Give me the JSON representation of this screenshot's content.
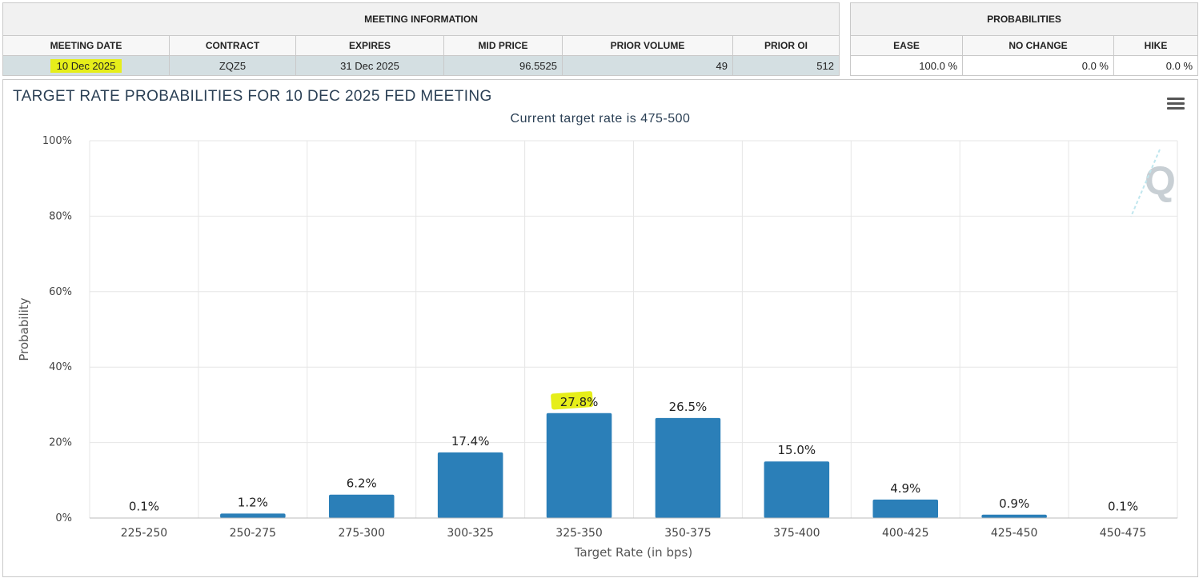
{
  "meeting_info": {
    "group_header": "MEETING INFORMATION",
    "columns": [
      "MEETING DATE",
      "CONTRACT",
      "EXPIRES",
      "MID PRICE",
      "PRIOR VOLUME",
      "PRIOR OI"
    ],
    "row": {
      "meeting_date": "10 Dec 2025",
      "contract": "ZQZ5",
      "expires": "31 Dec 2025",
      "mid_price": "96.5525",
      "prior_volume": "49",
      "prior_oi": "512"
    }
  },
  "probabilities": {
    "group_header": "PROBABILITIES",
    "columns": [
      "EASE",
      "NO CHANGE",
      "HIKE"
    ],
    "row": {
      "ease": "100.0 %",
      "no_change": "0.0 %",
      "hike": "0.0 %"
    }
  },
  "colors": {
    "bar": "#2b7fb8",
    "highlight": "#e6ee1a",
    "shaded_row": "#d4dfe2"
  },
  "menu_icon": "hamburger-menu-icon",
  "watermark_icon": "quikstrike-q-logo-icon",
  "chart_data": {
    "type": "bar",
    "title": "TARGET RATE PROBABILITIES FOR 10 DEC 2025 FED MEETING",
    "subtitle": "Current target rate is 475-500",
    "xlabel": "Target Rate (in bps)",
    "ylabel": "Probability",
    "categories": [
      "225-250",
      "250-275",
      "275-300",
      "300-325",
      "325-350",
      "350-375",
      "375-400",
      "400-425",
      "425-450",
      "450-475"
    ],
    "values": [
      0.1,
      1.2,
      6.2,
      17.4,
      27.8,
      26.5,
      15.0,
      4.9,
      0.9,
      0.1
    ],
    "data_labels": [
      "0.1%",
      "1.2%",
      "6.2%",
      "17.4%",
      "27.8%",
      "26.5%",
      "15.0%",
      "4.9%",
      "0.9%",
      "0.1%"
    ],
    "y_ticks": [
      "0%",
      "20%",
      "40%",
      "60%",
      "80%",
      "100%"
    ],
    "ylim": [
      0,
      100
    ],
    "grid": true,
    "highlighted_label": "27.8%"
  }
}
